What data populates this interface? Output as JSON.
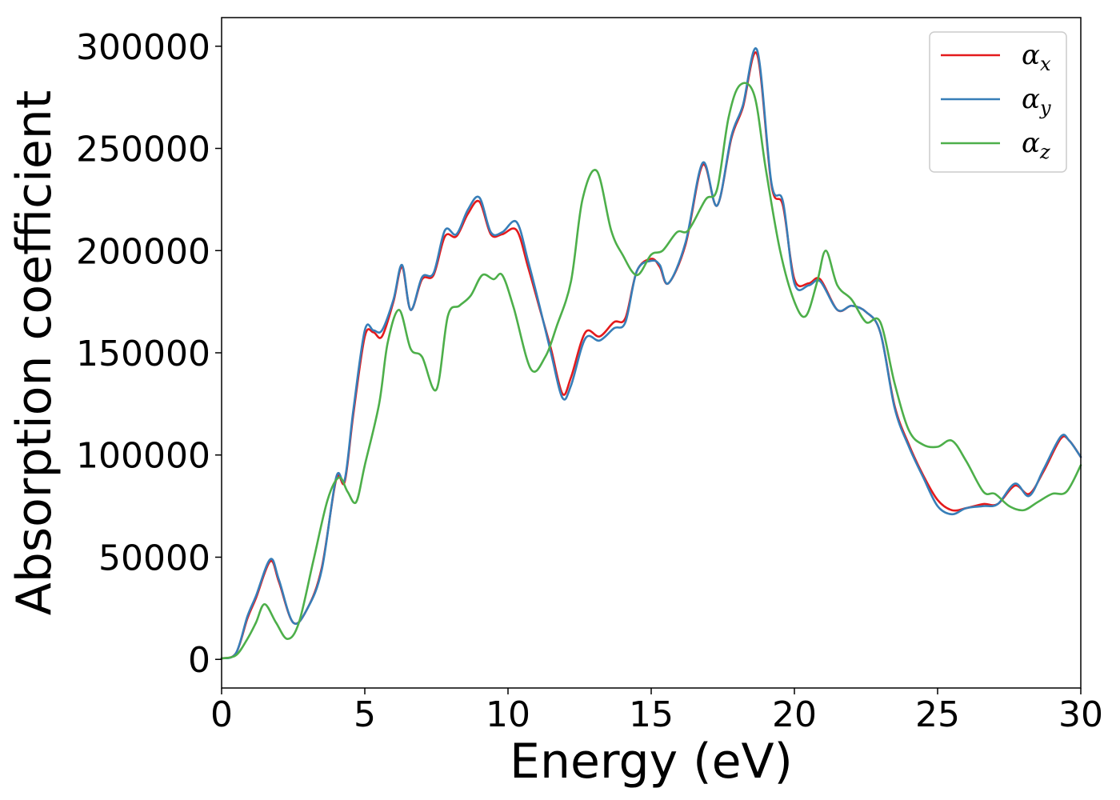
{
  "chart_data": {
    "type": "line",
    "xlabel": "Energy (eV)",
    "ylabel": "Absorption coefficient",
    "xlim": [
      0,
      30
    ],
    "ylim": [
      -14000,
      314000
    ],
    "xticks": [
      0,
      5,
      10,
      15,
      20,
      25,
      30
    ],
    "yticks": [
      0,
      50000,
      100000,
      150000,
      200000,
      250000,
      300000
    ],
    "grid": false,
    "legend": "top-right",
    "series": [
      {
        "name": "αx",
        "symbol": "α",
        "subscript": "x",
        "color": "#e41a1c",
        "x": [
          0,
          0.5,
          0.9,
          1.2,
          1.7,
          2.0,
          2.5,
          3.0,
          3.5,
          4.0,
          4.3,
          4.6,
          5.0,
          5.3,
          5.6,
          6.0,
          6.3,
          6.6,
          7.0,
          7.4,
          7.8,
          8.2,
          8.6,
          9.0,
          9.4,
          9.8,
          10.3,
          10.7,
          11.1,
          11.5,
          11.9,
          12.2,
          12.7,
          13.2,
          13.7,
          14.1,
          14.5,
          15.0,
          15.3,
          15.6,
          16.2,
          16.8,
          17.3,
          17.8,
          18.2,
          18.7,
          19.2,
          19.6,
          20.0,
          20.5,
          20.9,
          21.5,
          22.0,
          22.5,
          23.0,
          23.5,
          24.0,
          24.5,
          25.0,
          25.5,
          26.0,
          26.6,
          27.1,
          27.7,
          28.2,
          28.7,
          29.3,
          29.6,
          30.0
        ],
        "y": [
          500,
          3000,
          20000,
          30000,
          48000,
          38000,
          18000,
          25000,
          45000,
          88000,
          87000,
          120000,
          158000,
          160000,
          158000,
          175000,
          192000,
          171000,
          186000,
          188000,
          207000,
          207000,
          218000,
          224000,
          208000,
          208000,
          210000,
          192000,
          172000,
          152000,
          130000,
          138000,
          160000,
          158000,
          165000,
          167000,
          190000,
          196000,
          192000,
          184000,
          203000,
          242000,
          222000,
          255000,
          270000,
          296000,
          232000,
          222000,
          186000,
          184000,
          186000,
          171000,
          173000,
          170000,
          160000,
          124000,
          105000,
          90000,
          78000,
          73000,
          74000,
          76000,
          76000,
          85000,
          81000,
          92000,
          108000,
          107000,
          99000
        ]
      },
      {
        "name": "αy",
        "symbol": "α",
        "subscript": "y",
        "color": "#377eb8",
        "x": [
          0,
          0.5,
          0.9,
          1.2,
          1.7,
          2.0,
          2.5,
          3.0,
          3.5,
          4.0,
          4.3,
          4.6,
          5.0,
          5.3,
          5.6,
          6.0,
          6.3,
          6.6,
          7.0,
          7.4,
          7.8,
          8.2,
          8.6,
          9.0,
          9.4,
          9.8,
          10.3,
          10.7,
          11.1,
          11.5,
          11.9,
          12.2,
          12.7,
          13.2,
          13.7,
          14.1,
          14.5,
          15.0,
          15.3,
          15.6,
          16.2,
          16.8,
          17.3,
          17.8,
          18.2,
          18.7,
          19.2,
          19.6,
          20.0,
          20.5,
          20.9,
          21.5,
          22.0,
          22.5,
          23.0,
          23.5,
          24.0,
          24.5,
          25.0,
          25.5,
          26.0,
          26.6,
          27.1,
          27.7,
          28.2,
          28.7,
          29.3,
          29.6,
          30.0
        ],
        "y": [
          500,
          3000,
          21000,
          31000,
          49000,
          39000,
          18000,
          25000,
          44000,
          89000,
          88000,
          122000,
          161000,
          161000,
          161000,
          176000,
          193000,
          171000,
          187000,
          189000,
          210000,
          208000,
          220000,
          226000,
          209000,
          209000,
          214000,
          195000,
          173000,
          150000,
          128000,
          134000,
          157000,
          156000,
          162000,
          165000,
          190000,
          195000,
          193000,
          184000,
          204000,
          243000,
          222000,
          256000,
          271000,
          298000,
          233000,
          224000,
          184000,
          183000,
          185000,
          171000,
          173000,
          170000,
          160000,
          123000,
          104000,
          89000,
          75000,
          71000,
          74000,
          75000,
          76000,
          86000,
          80000,
          93000,
          109000,
          107000,
          99000
        ]
      },
      {
        "name": "αz",
        "symbol": "α",
        "subscript": "z",
        "color": "#4daf4a",
        "x": [
          0,
          0.5,
          0.9,
          1.2,
          1.5,
          1.9,
          2.3,
          2.7,
          3.2,
          3.7,
          4.1,
          4.4,
          4.7,
          5.0,
          5.5,
          5.8,
          6.2,
          6.6,
          7.0,
          7.5,
          7.9,
          8.3,
          8.7,
          9.1,
          9.5,
          9.8,
          10.2,
          10.8,
          11.3,
          11.7,
          12.2,
          12.6,
          13.1,
          13.6,
          14.0,
          14.5,
          15.0,
          15.4,
          15.9,
          16.3,
          16.9,
          17.3,
          17.7,
          18.1,
          18.6,
          19.0,
          19.5,
          20.0,
          20.4,
          20.8,
          21.1,
          21.5,
          22.0,
          22.5,
          23.0,
          23.5,
          24.0,
          24.5,
          25.0,
          25.5,
          26.0,
          26.6,
          27.0,
          27.5,
          28.0,
          28.5,
          29.0,
          29.5,
          30.0
        ],
        "y": [
          500,
          2000,
          10000,
          18000,
          27000,
          18000,
          10000,
          18000,
          48000,
          78000,
          89000,
          82000,
          77000,
          95000,
          125000,
          155000,
          171000,
          152000,
          148000,
          132000,
          168000,
          173000,
          178000,
          188000,
          186000,
          188000,
          172000,
          142000,
          148000,
          163000,
          185000,
          225000,
          239000,
          210000,
          198000,
          188000,
          198000,
          200000,
          209000,
          210000,
          225000,
          230000,
          265000,
          281000,
          276000,
          240000,
          200000,
          175000,
          168000,
          185000,
          200000,
          183000,
          176000,
          165000,
          165000,
          135000,
          112000,
          105000,
          104000,
          107000,
          97000,
          82000,
          81000,
          75000,
          73000,
          77000,
          81000,
          82000,
          95000
        ]
      }
    ]
  }
}
